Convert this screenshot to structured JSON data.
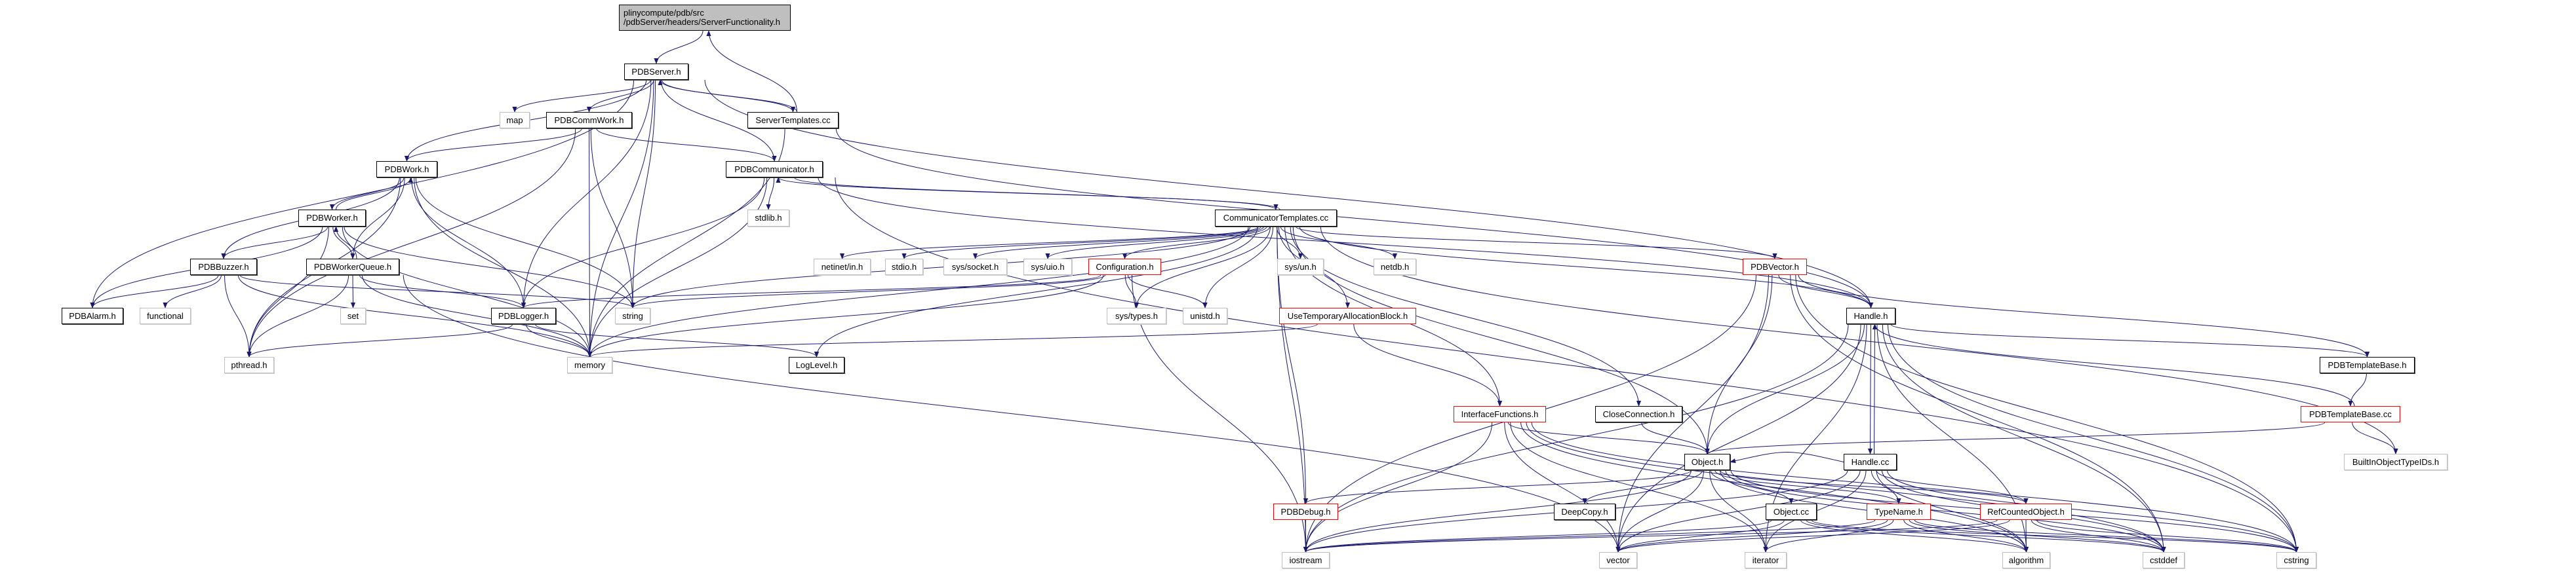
{
  "graph": {
    "colors": {
      "edge": "#191970",
      "root_fill": "#bfbfbf",
      "truncated_border": "#ff0000",
      "external_border": "#bfbfbf",
      "documented_border": "#000000"
    },
    "nodes": [
      {
        "id": "root",
        "label": "plinycompute/pdb/src\n/pdbServer/headers/ServerFunctionality.h",
        "kind": "root"
      },
      {
        "id": "PDBServer",
        "label": "PDBServer.h",
        "kind": "doc"
      },
      {
        "id": "map",
        "label": "map",
        "kind": "ext"
      },
      {
        "id": "PDBCommWork",
        "label": "PDBCommWork.h",
        "kind": "doc"
      },
      {
        "id": "ServerTemplates",
        "label": "ServerTemplates.cc",
        "kind": "doc"
      },
      {
        "id": "PDBWork",
        "label": "PDBWork.h",
        "kind": "doc"
      },
      {
        "id": "PDBCommunicator",
        "label": "PDBCommunicator.h",
        "kind": "doc"
      },
      {
        "id": "PDBWorker",
        "label": "PDBWorker.h",
        "kind": "doc"
      },
      {
        "id": "stdlib",
        "label": "stdlib.h",
        "kind": "ext"
      },
      {
        "id": "CommunicatorTemplates",
        "label": "CommunicatorTemplates.cc",
        "kind": "doc"
      },
      {
        "id": "PDBBuzzer",
        "label": "PDBBuzzer.h",
        "kind": "doc"
      },
      {
        "id": "PDBWorkerQueue",
        "label": "PDBWorkerQueue.h",
        "kind": "doc"
      },
      {
        "id": "netinet",
        "label": "netinet/in.h",
        "kind": "ext"
      },
      {
        "id": "stdio",
        "label": "stdio.h",
        "kind": "ext"
      },
      {
        "id": "syssocket",
        "label": "sys/socket.h",
        "kind": "ext"
      },
      {
        "id": "sysuio",
        "label": "sys/uio.h",
        "kind": "ext"
      },
      {
        "id": "Configuration",
        "label": "Configuration.h",
        "kind": "trunc"
      },
      {
        "id": "sysun",
        "label": "sys/un.h",
        "kind": "ext"
      },
      {
        "id": "netdb",
        "label": "netdb.h",
        "kind": "ext"
      },
      {
        "id": "PDBVector",
        "label": "PDBVector.h",
        "kind": "trunc"
      },
      {
        "id": "PDBAlarm",
        "label": "PDBAlarm.h",
        "kind": "doc"
      },
      {
        "id": "functional",
        "label": "functional",
        "kind": "ext"
      },
      {
        "id": "set",
        "label": "set",
        "kind": "ext"
      },
      {
        "id": "PDBLogger",
        "label": "PDBLogger.h",
        "kind": "doc"
      },
      {
        "id": "string",
        "label": "string",
        "kind": "ext"
      },
      {
        "id": "systypes",
        "label": "sys/types.h",
        "kind": "ext"
      },
      {
        "id": "unistd",
        "label": "unistd.h",
        "kind": "ext"
      },
      {
        "id": "UseTemp",
        "label": "UseTemporaryAllocationBlock.h",
        "kind": "trunc"
      },
      {
        "id": "Handleh",
        "label": "Handle.h",
        "kind": "doc"
      },
      {
        "id": "pthread",
        "label": "pthread.h",
        "kind": "ext"
      },
      {
        "id": "memory",
        "label": "memory",
        "kind": "ext"
      },
      {
        "id": "LogLevel",
        "label": "LogLevel.h",
        "kind": "doc"
      },
      {
        "id": "PDBTemplateBaseh",
        "label": "PDBTemplateBase.h",
        "kind": "doc"
      },
      {
        "id": "InterfaceFunctions",
        "label": "InterfaceFunctions.h",
        "kind": "trunc"
      },
      {
        "id": "CloseConnection",
        "label": "CloseConnection.h",
        "kind": "doc"
      },
      {
        "id": "PDBTemplateBasecc",
        "label": "PDBTemplateBase.cc",
        "kind": "trunc"
      },
      {
        "id": "Objecth",
        "label": "Object.h",
        "kind": "doc"
      },
      {
        "id": "Handlecc",
        "label": "Handle.cc",
        "kind": "doc"
      },
      {
        "id": "BuiltIn",
        "label": "BuiltInObjectTypeIDs.h",
        "kind": "ext"
      },
      {
        "id": "PDBDebug",
        "label": "PDBDebug.h",
        "kind": "trunc"
      },
      {
        "id": "DeepCopy",
        "label": "DeepCopy.h",
        "kind": "doc"
      },
      {
        "id": "Objectcc",
        "label": "Object.cc",
        "kind": "doc"
      },
      {
        "id": "TypeName",
        "label": "TypeName.h",
        "kind": "trunc"
      },
      {
        "id": "RefCounted",
        "label": "RefCountedObject.h",
        "kind": "trunc"
      },
      {
        "id": "iostream",
        "label": "iostream",
        "kind": "ext"
      },
      {
        "id": "vector",
        "label": "vector",
        "kind": "ext"
      },
      {
        "id": "iterator",
        "label": "iterator",
        "kind": "ext"
      },
      {
        "id": "algorithm",
        "label": "algorithm",
        "kind": "ext"
      },
      {
        "id": "cstddef",
        "label": "cstddef",
        "kind": "ext"
      },
      {
        "id": "cstring",
        "label": "cstring",
        "kind": "ext"
      }
    ],
    "edges": [
      [
        "root",
        "PDBServer"
      ],
      [
        "ServerTemplates",
        "root"
      ],
      [
        "PDBServer",
        "map"
      ],
      [
        "PDBServer",
        "PDBCommWork"
      ],
      [
        "PDBServer",
        "ServerTemplates"
      ],
      [
        "PDBServer",
        "PDBWork"
      ],
      [
        "PDBServer",
        "PDBCommunicator"
      ],
      [
        "PDBServer",
        "PDBAlarm"
      ],
      [
        "PDBServer",
        "PDBLogger"
      ],
      [
        "PDBServer",
        "string"
      ],
      [
        "PDBServer",
        "memory"
      ],
      [
        "PDBServer",
        "Handleh"
      ],
      [
        "ServerTemplates",
        "PDBServer"
      ],
      [
        "ServerTemplates",
        "memory"
      ],
      [
        "ServerTemplates",
        "Handleh"
      ],
      [
        "PDBCommWork",
        "PDBWork"
      ],
      [
        "PDBCommWork",
        "PDBCommunicator"
      ],
      [
        "PDBCommWork",
        "string"
      ],
      [
        "PDBCommWork",
        "memory"
      ],
      [
        "PDBCommWork",
        "pthread"
      ],
      [
        "PDBWork",
        "PDBWorker"
      ],
      [
        "PDBWork",
        "PDBBuzzer"
      ],
      [
        "PDBWork",
        "PDBWorkerQueue"
      ],
      [
        "PDBWork",
        "PDBLogger"
      ],
      [
        "PDBWork",
        "string"
      ],
      [
        "PDBWork",
        "memory"
      ],
      [
        "PDBWork",
        "pthread"
      ],
      [
        "PDBWorker",
        "PDBWork"
      ],
      [
        "PDBWorker",
        "PDBBuzzer"
      ],
      [
        "PDBWorker",
        "PDBWorkerQueue"
      ],
      [
        "PDBWorker",
        "PDBAlarm"
      ],
      [
        "PDBWorker",
        "pthread"
      ],
      [
        "PDBWorker",
        "memory"
      ],
      [
        "PDBWorker",
        "string"
      ],
      [
        "PDBWorkerQueue",
        "PDBWorker"
      ],
      [
        "PDBWorkerQueue",
        "set"
      ],
      [
        "PDBWorkerQueue",
        "PDBLogger"
      ],
      [
        "PDBWorkerQueue",
        "pthread"
      ],
      [
        "PDBWorkerQueue",
        "memory"
      ],
      [
        "PDBWorkerQueue",
        "vector"
      ],
      [
        "PDBBuzzer",
        "PDBAlarm"
      ],
      [
        "PDBBuzzer",
        "functional"
      ],
      [
        "PDBBuzzer",
        "pthread"
      ],
      [
        "PDBBuzzer",
        "memory"
      ],
      [
        "PDBBuzzer",
        "string"
      ],
      [
        "PDBCommunicator",
        "stdlib"
      ],
      [
        "PDBCommunicator",
        "CommunicatorTemplates"
      ],
      [
        "PDBCommunicator",
        "PDBLogger"
      ],
      [
        "PDBCommunicator",
        "memory"
      ],
      [
        "PDBCommunicator",
        "Handleh"
      ],
      [
        "PDBCommunicator",
        "cstring"
      ],
      [
        "CommunicatorTemplates",
        "PDBCommunicator"
      ],
      [
        "CommunicatorTemplates",
        "netinet"
      ],
      [
        "CommunicatorTemplates",
        "stdio"
      ],
      [
        "CommunicatorTemplates",
        "syssocket"
      ],
      [
        "CommunicatorTemplates",
        "sysuio"
      ],
      [
        "CommunicatorTemplates",
        "Configuration"
      ],
      [
        "CommunicatorTemplates",
        "systypes"
      ],
      [
        "CommunicatorTemplates",
        "unistd"
      ],
      [
        "CommunicatorTemplates",
        "sysun"
      ],
      [
        "CommunicatorTemplates",
        "netdb"
      ],
      [
        "CommunicatorTemplates",
        "UseTemp"
      ],
      [
        "CommunicatorTemplates",
        "InterfaceFunctions"
      ],
      [
        "CommunicatorTemplates",
        "CloseConnection"
      ],
      [
        "CommunicatorTemplates",
        "PDBVector"
      ],
      [
        "CommunicatorTemplates",
        "Handleh"
      ],
      [
        "CommunicatorTemplates",
        "iostream"
      ],
      [
        "CommunicatorTemplates",
        "PDBDebug"
      ],
      [
        "CommunicatorTemplates",
        "string"
      ],
      [
        "CommunicatorTemplates",
        "memory"
      ],
      [
        "CommunicatorTemplates",
        "LogLevel"
      ],
      [
        "CommunicatorTemplates",
        "Objecth"
      ],
      [
        "CommunicatorTemplates",
        "BuiltIn"
      ],
      [
        "Configuration",
        "systypes"
      ],
      [
        "Configuration",
        "unistd"
      ],
      [
        "Configuration",
        "string"
      ],
      [
        "Configuration",
        "memory"
      ],
      [
        "Configuration",
        "iostream"
      ],
      [
        "Configuration",
        "PDBLogger"
      ],
      [
        "PDBLogger",
        "pthread"
      ],
      [
        "PDBLogger",
        "memory"
      ],
      [
        "PDBLogger",
        "LogLevel"
      ],
      [
        "UseTemp",
        "memory"
      ],
      [
        "UseTemp",
        "InterfaceFunctions"
      ],
      [
        "PDBVector",
        "Handleh"
      ],
      [
        "PDBVector",
        "Objecth"
      ],
      [
        "PDBVector",
        "PDBTemplateBaseh"
      ],
      [
        "PDBVector",
        "iostream"
      ],
      [
        "PDBVector",
        "vector"
      ],
      [
        "PDBVector",
        "cstring"
      ],
      [
        "PDBVector",
        "cstddef"
      ],
      [
        "Handleh",
        "Handlecc"
      ],
      [
        "Handleh",
        "Objecth"
      ],
      [
        "Handleh",
        "PDBTemplateBaseh"
      ],
      [
        "Handleh",
        "iostream"
      ],
      [
        "Handleh",
        "vector"
      ],
      [
        "Handleh",
        "iterator"
      ],
      [
        "Handleh",
        "cstddef"
      ],
      [
        "Handleh",
        "cstring"
      ],
      [
        "Handleh",
        "algorithm"
      ],
      [
        "Handlecc",
        "Handleh"
      ],
      [
        "Handlecc",
        "Objecth"
      ],
      [
        "Handlecc",
        "TypeName"
      ],
      [
        "Handlecc",
        "RefCounted"
      ],
      [
        "Handlecc",
        "iostream"
      ],
      [
        "Handlecc",
        "vector"
      ],
      [
        "Handlecc",
        "iterator"
      ],
      [
        "Handlecc",
        "cstddef"
      ],
      [
        "Handlecc",
        "cstring"
      ],
      [
        "Handlecc",
        "algorithm"
      ],
      [
        "PDBTemplateBaseh",
        "PDBTemplateBasecc"
      ],
      [
        "PDBTemplateBasecc",
        "Handleh"
      ],
      [
        "PDBTemplateBasecc",
        "BuiltIn"
      ],
      [
        "PDBTemplateBasecc",
        "Objecth"
      ],
      [
        "InterfaceFunctions",
        "Objecth"
      ],
      [
        "InterfaceFunctions",
        "iostream"
      ],
      [
        "InterfaceFunctions",
        "vector"
      ],
      [
        "InterfaceFunctions",
        "iterator"
      ],
      [
        "InterfaceFunctions",
        "cstddef"
      ],
      [
        "InterfaceFunctions",
        "cstring"
      ],
      [
        "InterfaceFunctions",
        "algorithm"
      ],
      [
        "CloseConnection",
        "Objecth"
      ],
      [
        "Objecth",
        "DeepCopy"
      ],
      [
        "Objecth",
        "Objectcc"
      ],
      [
        "Objecth",
        "TypeName"
      ],
      [
        "Objecth",
        "RefCounted"
      ],
      [
        "Objecth",
        "PDBDebug"
      ],
      [
        "Objecth",
        "iostream"
      ],
      [
        "Objecth",
        "vector"
      ],
      [
        "Objecth",
        "iterator"
      ],
      [
        "Objecth",
        "cstddef"
      ],
      [
        "Objecth",
        "cstring"
      ],
      [
        "Objecth",
        "algorithm"
      ],
      [
        "Objectcc",
        "iostream"
      ],
      [
        "Objectcc",
        "vector"
      ],
      [
        "Objectcc",
        "cstddef"
      ],
      [
        "Objectcc",
        "cstring"
      ],
      [
        "Objectcc",
        "algorithm"
      ],
      [
        "PDBDebug",
        "iostream"
      ],
      [
        "TypeName",
        "iostream"
      ],
      [
        "TypeName",
        "vector"
      ],
      [
        "TypeName",
        "iterator"
      ],
      [
        "TypeName",
        "cstddef"
      ],
      [
        "TypeName",
        "cstring"
      ],
      [
        "TypeName",
        "algorithm"
      ],
      [
        "RefCounted",
        "iostream"
      ],
      [
        "RefCounted",
        "vector"
      ],
      [
        "RefCounted",
        "algorithm"
      ],
      [
        "RefCounted",
        "cstddef"
      ],
      [
        "RefCounted",
        "cstring"
      ]
    ]
  }
}
